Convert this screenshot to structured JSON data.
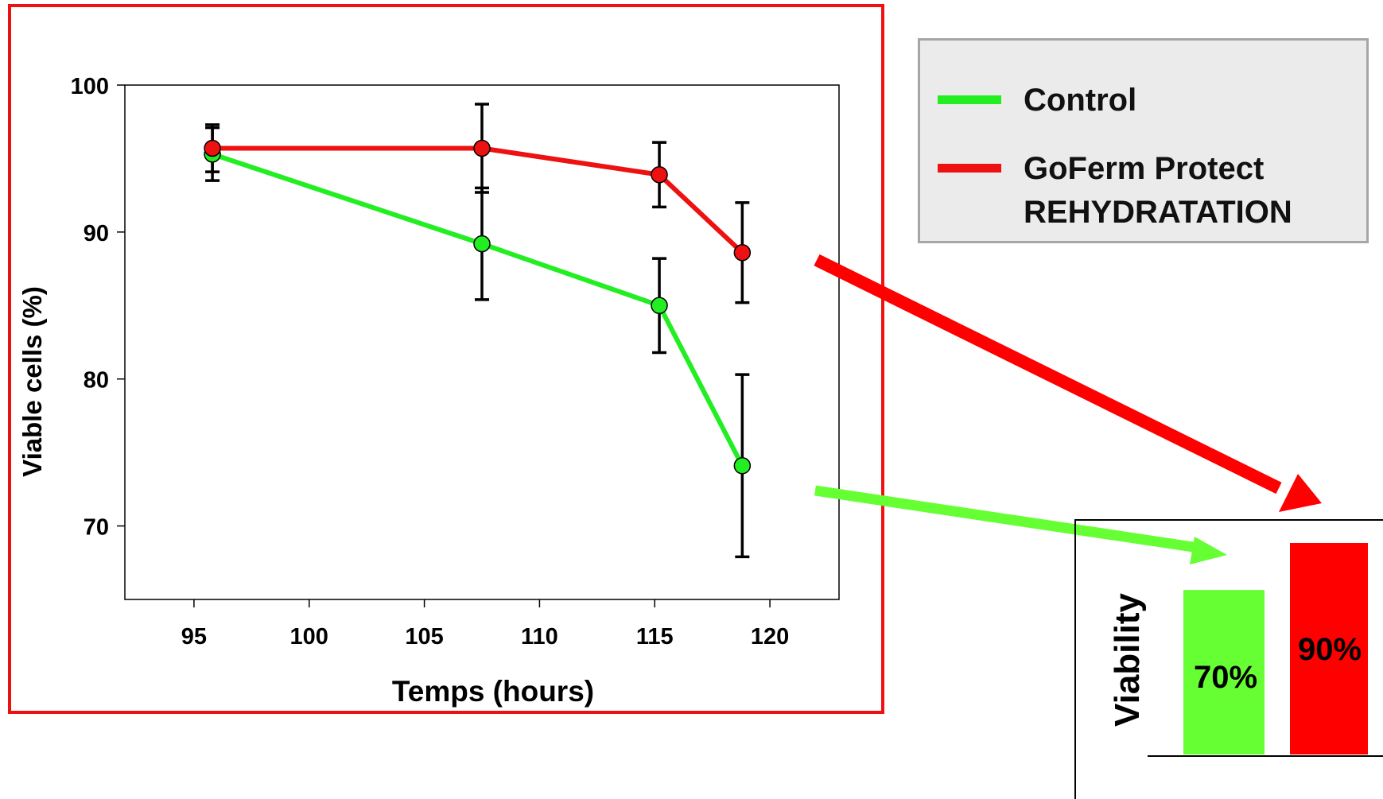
{
  "chart_data": [
    {
      "type": "line",
      "xlabel": "Temps (hours)",
      "ylabel": "Viable cells (%)",
      "xlim": [
        92,
        123
      ],
      "ylim": [
        65,
        100
      ],
      "x_ticks": [
        95,
        100,
        105,
        110,
        115,
        120
      ],
      "y_ticks": [
        70,
        80,
        90,
        100
      ],
      "grid": false,
      "series": [
        {
          "name": "Control",
          "color": "#22ee22",
          "x": [
            95.8,
            107.5,
            115.2,
            118.8
          ],
          "y": [
            95.3,
            89.2,
            85.0,
            74.1
          ],
          "error": [
            1.8,
            3.8,
            3.2,
            6.2
          ]
        },
        {
          "name": "GoFerm Protect REHYDRATATION",
          "color": "#ee1111",
          "x": [
            95.8,
            107.5,
            115.2,
            118.8
          ],
          "y": [
            95.7,
            95.7,
            93.9,
            88.6
          ],
          "error": [
            1.6,
            3.0,
            2.2,
            3.4
          ]
        }
      ]
    },
    {
      "type": "bar",
      "ylabel": "Viability",
      "categories": [
        "Control",
        "GoFerm Protect REHYDRATATION"
      ],
      "values": [
        70,
        90
      ],
      "labels": [
        "70%",
        "90%"
      ],
      "colors": [
        "#66ff33",
        "#ff0000"
      ]
    }
  ],
  "legend": {
    "items": [
      {
        "label": "Control",
        "color": "#22ee22"
      },
      {
        "label": "GoFerm Protect",
        "label2": "REHYDRATATION",
        "color": "#ee1111"
      }
    ]
  },
  "colors": {
    "frame": "#ee1111",
    "arrow_red": "#ff0000",
    "arrow_green": "#66ff33"
  }
}
